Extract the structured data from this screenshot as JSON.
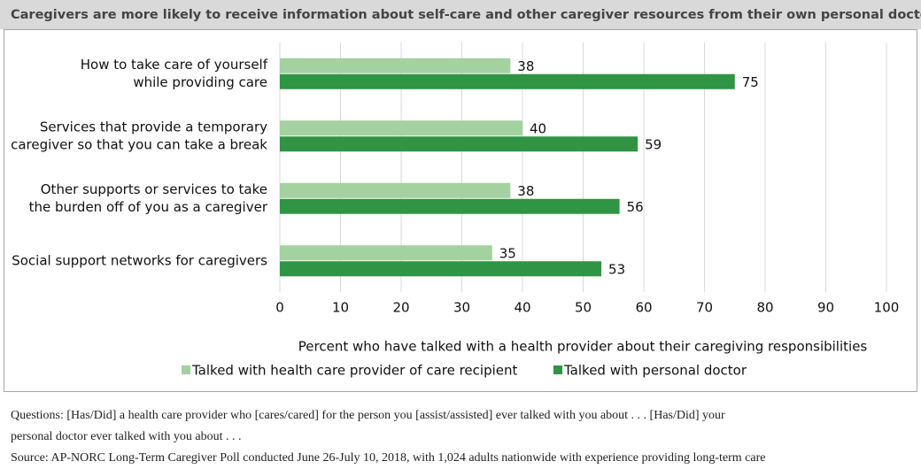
{
  "chart_data": {
    "type": "bar",
    "orientation": "horizontal",
    "title": "Caregivers are more likely to receive information about self-care and other caregiver resources from their own personal doctors.",
    "categories": [
      [
        "How to take care of yourself",
        "while providing care"
      ],
      [
        "Services that provide a temporary",
        "caregiver so that you can take a break"
      ],
      [
        "Other supports or services to take",
        "the burden off of you as a caregiver"
      ],
      [
        "Social support networks for caregivers"
      ]
    ],
    "series": [
      {
        "name": "Talked with health care provider of care recipient",
        "color": "#a3d1a0",
        "values": [
          38,
          40,
          38,
          35
        ]
      },
      {
        "name": "Talked with personal doctor",
        "color": "#2f9443",
        "values": [
          75,
          59,
          56,
          53
        ]
      }
    ],
    "x_label": "Percent who have talked with a health provider about their caregiving responsibilities",
    "xlim": [
      0,
      100
    ],
    "xticks": [
      0,
      10,
      20,
      30,
      40,
      50,
      60,
      70,
      80,
      90,
      100
    ],
    "grid": true,
    "notes": [
      "Questions: [Has/Did] a health care provider who [cares/cared] for the person you [assist/assisted] ever talked with you about . . . [Has/Did] your",
      "personal doctor ever talked with you about . . .",
      "Source: AP-NORC Long-Term Caregiver Poll conducted June 26-July 10, 2018, with 1,024 adults nationwide with experience providing long-term care"
    ]
  }
}
